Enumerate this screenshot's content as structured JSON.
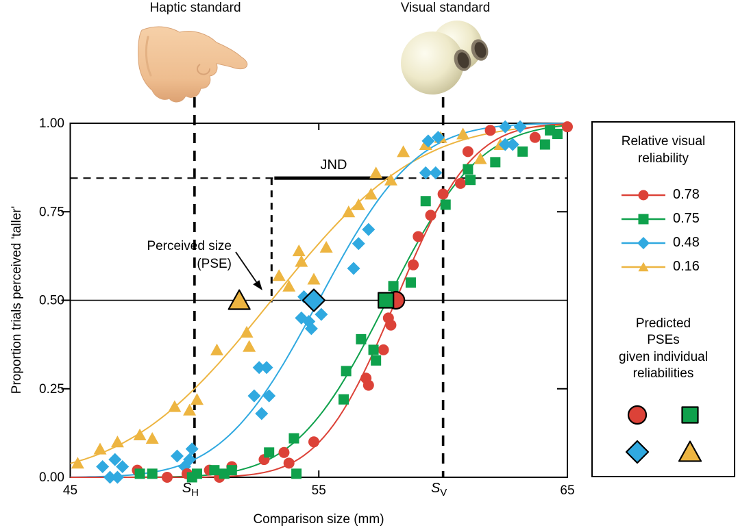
{
  "top_labels": {
    "haptic": "Haptic standard",
    "visual": "Visual standard"
  },
  "axes": {
    "x_title": "Comparison size (mm)",
    "y_title": "Proportion trials perceived 'taller'",
    "x_tick_labels": [
      "45",
      "55",
      "65"
    ],
    "x_tick_values": [
      45,
      55,
      65
    ],
    "standards": [
      {
        "label_main": "S",
        "label_sub": "H",
        "value": 50
      },
      {
        "label_main": "S",
        "label_sub": "V",
        "value": 60
      }
    ],
    "y_tick_labels": [
      "0.00",
      "0.25",
      "0.50",
      "0.75",
      "1.00"
    ],
    "y_tick_values": [
      0,
      0.25,
      0.5,
      0.75,
      1
    ]
  },
  "annotations": {
    "jnd_label": "JND",
    "pse_label_lines": [
      "Perceived size",
      "(PSE)"
    ]
  },
  "legend": {
    "title_lines": [
      "Relative visual",
      "reliability"
    ],
    "entries": [
      {
        "label": "0.78",
        "color": "#dc4238",
        "marker": "circle"
      },
      {
        "label": "0.75",
        "color": "#0fa14c",
        "marker": "square"
      },
      {
        "label": "0.48",
        "color": "#30a9e0",
        "marker": "diamond"
      },
      {
        "label": "0.16",
        "color": "#edb541",
        "marker": "triangle"
      }
    ],
    "predicted_lines": [
      "Predicted",
      "PSEs",
      "given individual",
      "reliabilities"
    ],
    "predicted_markers": [
      {
        "marker": "circle",
        "color": "#dc4238"
      },
      {
        "marker": "square",
        "color": "#0fa14c"
      },
      {
        "marker": "diamond",
        "color": "#30a9e0"
      },
      {
        "marker": "triangle",
        "color": "#edb541"
      }
    ]
  },
  "chart_data": {
    "type": "scatter",
    "title": "Visual-haptic size discrimination psychometric functions",
    "xlabel": "Comparison size (mm)",
    "ylabel": "Proportion trials perceived 'taller'",
    "xlim": [
      45,
      65
    ],
    "ylim": [
      0,
      1
    ],
    "reference": {
      "haptic_standard_mm": 50,
      "visual_standard_mm": 60,
      "pse_level": 0.5,
      "jnd_level": 0.84,
      "pse_mm": 53.1,
      "jnd_segment_mm": [
        53.1,
        57.8
      ]
    },
    "series": [
      {
        "name": "0.78",
        "color": "#dc4238",
        "marker": "circle",
        "curve": {
          "mu": 58.1,
          "sigma": 2.4
        },
        "predicted_pse_mm": 58.1,
        "points": [
          [
            47.7,
            0.02
          ],
          [
            48.9,
            0.0
          ],
          [
            49.7,
            0.01
          ],
          [
            50.6,
            0.02
          ],
          [
            51.0,
            0.0
          ],
          [
            51.5,
            0.03
          ],
          [
            52.8,
            0.05
          ],
          [
            53.6,
            0.07
          ],
          [
            53.8,
            0.04
          ],
          [
            54.8,
            0.1
          ],
          [
            56.9,
            0.28
          ],
          [
            57.0,
            0.26
          ],
          [
            57.6,
            0.36
          ],
          [
            57.8,
            0.45
          ],
          [
            57.9,
            0.43
          ],
          [
            58.8,
            0.6
          ],
          [
            59.0,
            0.68
          ],
          [
            59.5,
            0.74
          ],
          [
            60.0,
            0.8
          ],
          [
            60.7,
            0.83
          ],
          [
            61.0,
            0.92
          ],
          [
            61.9,
            0.98
          ],
          [
            63.7,
            0.96
          ],
          [
            65.0,
            0.99
          ]
        ]
      },
      {
        "name": "0.75",
        "color": "#0fa14c",
        "marker": "square",
        "curve": {
          "mu": 57.75,
          "sigma": 2.9
        },
        "predicted_pse_mm": 57.7,
        "points": [
          [
            47.8,
            0.01
          ],
          [
            48.3,
            0.01
          ],
          [
            49.9,
            0.0
          ],
          [
            50.1,
            0.01
          ],
          [
            50.8,
            0.02
          ],
          [
            51.2,
            0.01
          ],
          [
            51.5,
            0.02
          ],
          [
            53.0,
            0.07
          ],
          [
            54.0,
            0.11
          ],
          [
            54.1,
            0.01
          ],
          [
            56.0,
            0.22
          ],
          [
            56.1,
            0.3
          ],
          [
            56.7,
            0.39
          ],
          [
            57.2,
            0.36
          ],
          [
            57.3,
            0.33
          ],
          [
            58.0,
            0.54
          ],
          [
            58.7,
            0.55
          ],
          [
            59.3,
            0.78
          ],
          [
            60.1,
            0.77
          ],
          [
            61.0,
            0.87
          ],
          [
            61.1,
            0.84
          ],
          [
            62.1,
            0.89
          ],
          [
            63.2,
            0.92
          ],
          [
            64.1,
            0.94
          ],
          [
            64.3,
            0.98
          ],
          [
            64.6,
            0.97
          ]
        ]
      },
      {
        "name": "0.48",
        "color": "#30a9e0",
        "marker": "diamond",
        "curve": {
          "mu": 55.0,
          "sigma": 3.05
        },
        "predicted_pse_mm": 54.8,
        "points": [
          [
            46.3,
            0.03
          ],
          [
            46.6,
            0.0
          ],
          [
            46.8,
            0.05
          ],
          [
            46.9,
            0.0
          ],
          [
            47.1,
            0.03
          ],
          [
            49.3,
            0.06
          ],
          [
            49.6,
            0.03
          ],
          [
            49.8,
            0.05
          ],
          [
            49.9,
            0.08
          ],
          [
            52.4,
            0.23
          ],
          [
            52.6,
            0.31
          ],
          [
            52.7,
            0.18
          ],
          [
            52.9,
            0.31
          ],
          [
            53.0,
            0.23
          ],
          [
            54.3,
            0.45
          ],
          [
            54.4,
            0.51
          ],
          [
            54.6,
            0.44
          ],
          [
            54.7,
            0.42
          ],
          [
            55.1,
            0.46
          ],
          [
            56.4,
            0.59
          ],
          [
            56.6,
            0.66
          ],
          [
            57.0,
            0.7
          ],
          [
            59.3,
            0.86
          ],
          [
            59.7,
            0.86
          ],
          [
            59.4,
            0.95
          ],
          [
            59.8,
            0.96
          ],
          [
            62.5,
            0.94
          ],
          [
            62.8,
            0.94
          ],
          [
            62.5,
            0.99
          ],
          [
            63.1,
            0.99
          ]
        ]
      },
      {
        "name": "0.16",
        "color": "#edb541",
        "marker": "triangle",
        "curve": {
          "mu": 53.1,
          "sigma": 4.6
        },
        "predicted_pse_mm": 51.8,
        "points": [
          [
            45.3,
            0.04
          ],
          [
            46.2,
            0.08
          ],
          [
            46.9,
            0.1
          ],
          [
            47.8,
            0.12
          ],
          [
            48.3,
            0.11
          ],
          [
            49.2,
            0.2
          ],
          [
            49.8,
            0.19
          ],
          [
            50.1,
            0.22
          ],
          [
            50.9,
            0.36
          ],
          [
            52.1,
            0.41
          ],
          [
            52.2,
            0.37
          ],
          [
            53.4,
            0.57
          ],
          [
            53.8,
            0.54
          ],
          [
            54.2,
            0.64
          ],
          [
            54.3,
            0.61
          ],
          [
            54.8,
            0.56
          ],
          [
            55.3,
            0.65
          ],
          [
            56.2,
            0.75
          ],
          [
            56.6,
            0.77
          ],
          [
            57.1,
            0.8
          ],
          [
            57.3,
            0.86
          ],
          [
            57.9,
            0.84
          ],
          [
            58.4,
            0.92
          ],
          [
            59.3,
            0.94
          ],
          [
            59.9,
            0.96
          ],
          [
            60.8,
            0.97
          ],
          [
            61.5,
            0.9
          ],
          [
            62.3,
            0.94
          ]
        ]
      }
    ],
    "legend_position": "right",
    "grid": false
  }
}
